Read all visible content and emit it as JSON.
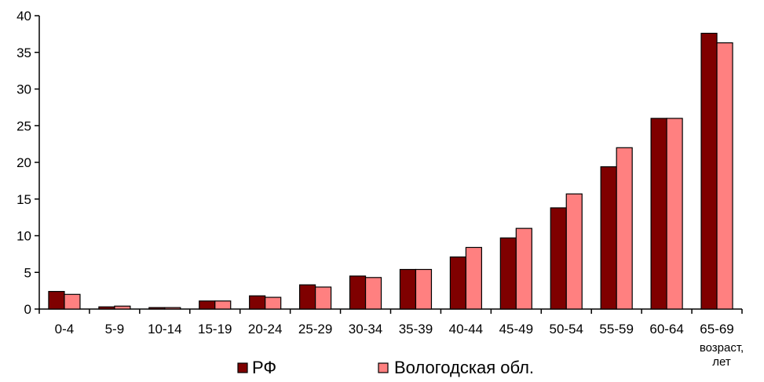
{
  "chart_data": {
    "type": "bar",
    "title": "",
    "xlabel": "возраст, лет",
    "ylabel": "",
    "ylim": [
      0,
      40
    ],
    "yticks": [
      0,
      5,
      10,
      15,
      20,
      25,
      30,
      35,
      40
    ],
    "categories": [
      "0-4",
      "5-9",
      "10-14",
      "15-19",
      "20-24",
      "25-29",
      "30-34",
      "35-39",
      "40-44",
      "45-49",
      "50-54",
      "55-59",
      "60-64",
      "65-69"
    ],
    "series": [
      {
        "name": "РФ",
        "color": "#7f0000",
        "values": [
          2.4,
          0.3,
          0.2,
          1.1,
          1.8,
          3.3,
          4.5,
          5.4,
          7.1,
          9.7,
          13.8,
          19.4,
          26.0,
          37.6
        ]
      },
      {
        "name": "Вологодская обл.",
        "color": "#ff8080",
        "values": [
          2.0,
          0.4,
          0.2,
          1.1,
          1.6,
          3.0,
          4.3,
          5.4,
          8.4,
          11.0,
          15.7,
          22.0,
          26.0,
          36.3
        ]
      }
    ],
    "grid": false,
    "legend": "bottom"
  }
}
